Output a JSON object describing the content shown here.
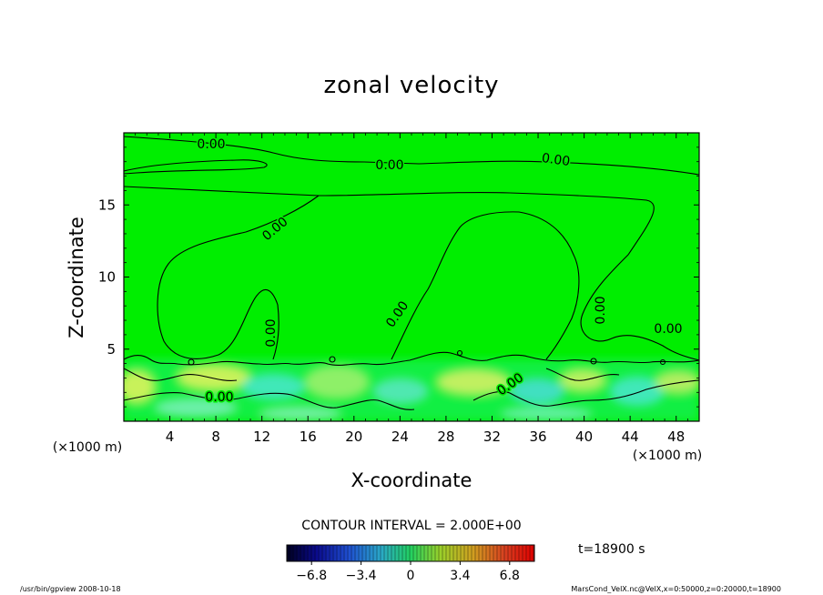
{
  "chart_data": {
    "type": "heatmap",
    "title": "zonal velocity",
    "xlabel": "X-coordinate",
    "ylabel": "Z-coordinate",
    "x_unit": "(×1000 m)",
    "y_unit": "(×1000 m)",
    "xlim": [
      0,
      50
    ],
    "ylim": [
      0,
      20
    ],
    "x_ticks": [
      4,
      8,
      12,
      16,
      20,
      24,
      28,
      32,
      36,
      40,
      44,
      48
    ],
    "y_ticks": [
      5,
      10,
      15
    ],
    "contour_labels": [
      "0.00",
      "0.00",
      "0.00",
      "0.00",
      "0.00",
      "0.00",
      "0.00",
      "0.00",
      "0.00",
      "0.00"
    ],
    "contour_interval_text": "CONTOUR INTERVAL = 2.000E+00",
    "time_text": "t=18900 s",
    "colorbar": {
      "range": [
        -8.5,
        8.5
      ],
      "ticks": [
        "−6.8",
        "−3.4",
        "0",
        "3.4",
        "6.8"
      ],
      "tick_values": [
        -6.8,
        -3.4,
        0,
        3.4,
        6.8
      ]
    },
    "background_color": "#00ee00",
    "grid": false
  },
  "footer": {
    "left": "/usr/bin/gpview   2008-10-18",
    "right": "MarsCond_VelX.nc@VelX,x=0:50000,z=0:20000,t=18900"
  }
}
